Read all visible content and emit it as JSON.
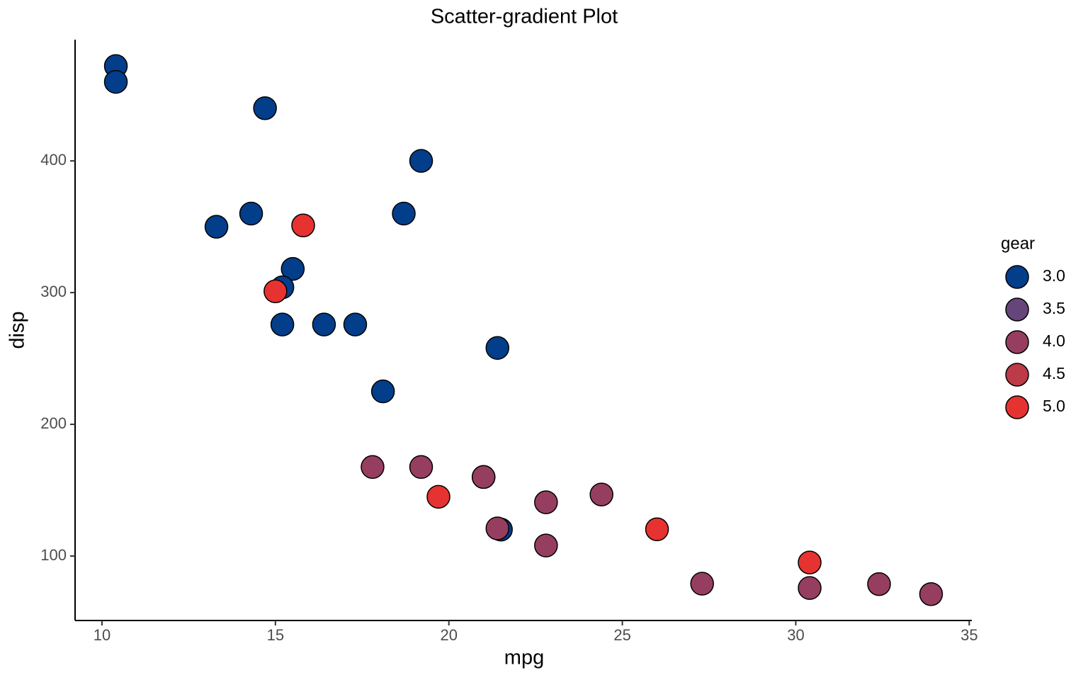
{
  "chart_data": {
    "type": "scatter",
    "title": "Scatter-gradient Plot",
    "x_label": "mpg",
    "y_label": "disp",
    "x": [
      21.0,
      21.0,
      22.8,
      21.4,
      18.7,
      18.1,
      14.3,
      24.4,
      22.8,
      19.2,
      17.8,
      16.4,
      17.3,
      15.2,
      10.4,
      10.4,
      14.7,
      32.4,
      30.4,
      33.9,
      21.5,
      15.5,
      15.2,
      13.3,
      19.2,
      27.3,
      26.0,
      30.4,
      15.8,
      19.7,
      15.0,
      21.4
    ],
    "y": [
      160,
      160,
      108,
      258,
      360,
      225,
      360,
      146.7,
      140.8,
      167.6,
      167.6,
      275.8,
      275.8,
      275.8,
      472,
      460,
      440,
      78.7,
      75.7,
      71.1,
      120.1,
      318,
      304,
      350,
      400,
      79,
      120.3,
      95.1,
      351,
      145,
      301,
      121
    ],
    "gear": [
      4,
      4,
      4,
      3,
      3,
      3,
      3,
      4,
      4,
      4,
      4,
      3,
      3,
      3,
      3,
      3,
      3,
      4,
      4,
      4,
      3,
      3,
      3,
      3,
      3,
      4,
      5,
      5,
      5,
      5,
      5,
      4
    ],
    "xlim": [
      9.225,
      35.075
    ],
    "ylim": [
      51.055,
      492.045
    ],
    "xticks": [
      10,
      15,
      20,
      25,
      30,
      35
    ],
    "yticks": [
      100,
      200,
      300,
      400
    ],
    "legend": {
      "title": "gear",
      "position": "right",
      "breaks": [
        {
          "value": 3,
          "label": "3.0",
          "color": "#023e8a"
        },
        {
          "value": 3.5,
          "label": "3.5",
          "color": "#66457a"
        },
        {
          "value": 4,
          "label": "4.0",
          "color": "#963e5f"
        },
        {
          "value": 4.5,
          "label": "4.5",
          "color": "#bd3a49"
        },
        {
          "value": 5,
          "label": "5.0",
          "color": "#e63231"
        }
      ]
    }
  }
}
